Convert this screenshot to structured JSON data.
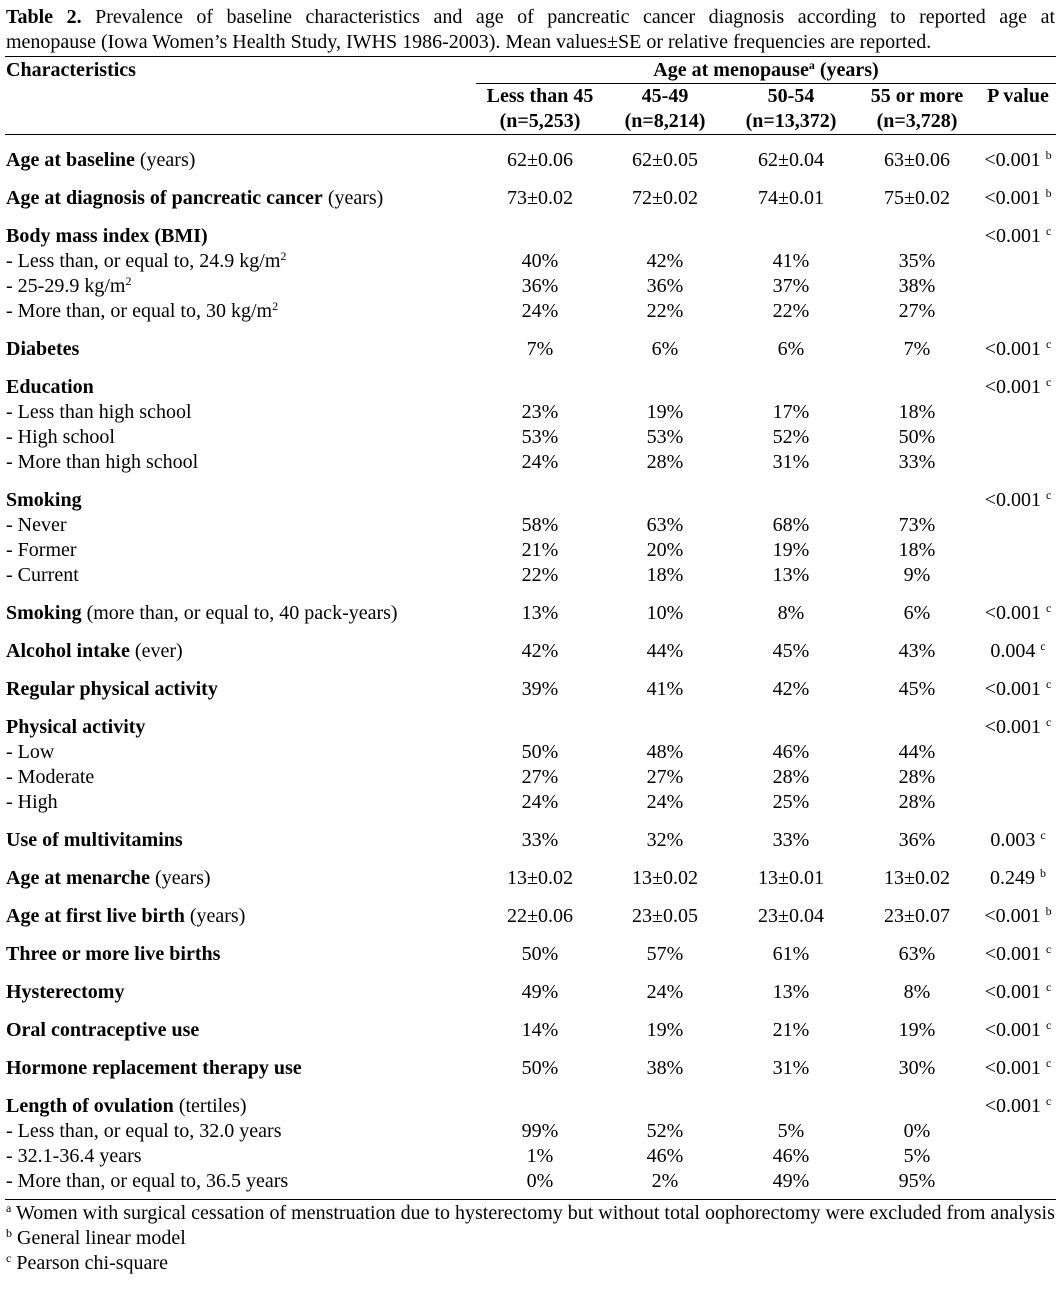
{
  "caption": {
    "label": "Table 2.",
    "text_line1": "Prevalence of baseline characteristics and age of pancreatic cancer diagnosis according to reported age at",
    "text_line2": "menopause (Iowa Women’s Health Study, IWHS 1986-2003). Mean values±SE or relative frequencies are reported."
  },
  "header": {
    "characteristics": "Characteristics",
    "group": "Age at menopause",
    "group_sup": "a",
    "group_unit": " (years)",
    "columns": [
      {
        "label": "Less than 45",
        "n": "(n=5,253)"
      },
      {
        "label": "45-49",
        "n": "(n=8,214)"
      },
      {
        "label": "50-54",
        "n": "(n=13,372)"
      },
      {
        "label": "55 or more",
        "n": "(n=3,728)"
      }
    ],
    "p_value": "P value"
  },
  "rows": [
    {
      "type": "main",
      "bold": "Age at baseline",
      "rest": " (years)",
      "values": [
        "62±0.06",
        "62±0.05",
        "62±0.04",
        "63±0.06"
      ],
      "p": "<0.001",
      "p_sup": "b"
    },
    {
      "type": "main",
      "bold": "Age at diagnosis of pancreatic cancer",
      "rest": " (years)",
      "values": [
        "73±0.02",
        "72±0.02",
        "74±0.01",
        "75±0.02"
      ],
      "p": "<0.001",
      "p_sup": "b"
    },
    {
      "type": "main",
      "bold": "Body mass index (BMI)",
      "rest": "",
      "values": [
        "",
        "",
        "",
        ""
      ],
      "p": "<0.001",
      "p_sup": "c"
    },
    {
      "type": "sub",
      "rest": "- Less than, or equal to, 24.9 kg/m",
      "sup": "2",
      "values": [
        "40%",
        "42%",
        "41%",
        "35%"
      ]
    },
    {
      "type": "sub",
      "rest": "- 25-29.9 kg/m",
      "sup": "2",
      "values": [
        "36%",
        "36%",
        "37%",
        "38%"
      ]
    },
    {
      "type": "sub",
      "rest": "- More than, or equal to, 30 kg/m",
      "sup": "2",
      "values": [
        "24%",
        "22%",
        "22%",
        "27%"
      ]
    },
    {
      "type": "main",
      "bold": "Diabetes",
      "rest": "",
      "values": [
        "7%",
        "6%",
        "6%",
        "7%"
      ],
      "p": "<0.001",
      "p_sup": "c"
    },
    {
      "type": "main",
      "bold": "Education",
      "rest": "",
      "values": [
        "",
        "",
        "",
        ""
      ],
      "p": "<0.001",
      "p_sup": "c"
    },
    {
      "type": "sub",
      "rest": "- Less than high school",
      "values": [
        "23%",
        "19%",
        "17%",
        "18%"
      ]
    },
    {
      "type": "sub",
      "rest": "- High school",
      "values": [
        "53%",
        "53%",
        "52%",
        "50%"
      ]
    },
    {
      "type": "sub",
      "rest": "- More than high school",
      "values": [
        "24%",
        "28%",
        "31%",
        "33%"
      ]
    },
    {
      "type": "main",
      "bold": "Smoking",
      "rest": "",
      "values": [
        "",
        "",
        "",
        ""
      ],
      "p": "<0.001",
      "p_sup": "c"
    },
    {
      "type": "sub",
      "rest": "- Never",
      "values": [
        "58%",
        "63%",
        "68%",
        "73%"
      ]
    },
    {
      "type": "sub",
      "rest": "- Former",
      "values": [
        "21%",
        "20%",
        "19%",
        "18%"
      ]
    },
    {
      "type": "sub",
      "rest": "- Current",
      "values": [
        "22%",
        "18%",
        "13%",
        "9%"
      ]
    },
    {
      "type": "main",
      "bold": "Smoking",
      "rest": " (more than, or equal to, 40 pack-years)",
      "values": [
        "13%",
        "10%",
        "8%",
        "6%"
      ],
      "p": "<0.001",
      "p_sup": "c"
    },
    {
      "type": "main",
      "bold": "Alcohol intake",
      "rest": " (ever)",
      "values": [
        "42%",
        "44%",
        "45%",
        "43%"
      ],
      "p": "0.004",
      "p_sup": "c"
    },
    {
      "type": "main",
      "bold": "Regular physical activity",
      "rest": "",
      "values": [
        "39%",
        "41%",
        "42%",
        "45%"
      ],
      "p": "<0.001",
      "p_sup": "c"
    },
    {
      "type": "main",
      "bold": "Physical activity",
      "rest": "",
      "values": [
        "",
        "",
        "",
        ""
      ],
      "p": "<0.001",
      "p_sup": "c"
    },
    {
      "type": "sub",
      "rest": "- Low",
      "values": [
        "50%",
        "48%",
        "46%",
        "44%"
      ]
    },
    {
      "type": "sub",
      "rest": "- Moderate",
      "values": [
        "27%",
        "27%",
        "28%",
        "28%"
      ]
    },
    {
      "type": "sub",
      "rest": "- High",
      "values": [
        "24%",
        "24%",
        "25%",
        "28%"
      ]
    },
    {
      "type": "main",
      "bold": "Use of multivitamins",
      "rest": "",
      "values": [
        "33%",
        "32%",
        "33%",
        "36%"
      ],
      "p": "0.003",
      "p_sup": "c"
    },
    {
      "type": "main",
      "bold": "Age at menarche",
      "rest": " (years)",
      "values": [
        "13±0.02",
        "13±0.02",
        "13±0.01",
        "13±0.02"
      ],
      "p": "0.249",
      "p_sup": "b"
    },
    {
      "type": "main",
      "bold": "Age at first live birth",
      "rest": " (years)",
      "values": [
        "22±0.06",
        "23±0.05",
        "23±0.04",
        "23±0.07"
      ],
      "p": "<0.001",
      "p_sup": "b"
    },
    {
      "type": "main",
      "bold": "Three or more live births",
      "rest": "",
      "values": [
        "50%",
        "57%",
        "61%",
        "63%"
      ],
      "p": "<0.001",
      "p_sup": "c"
    },
    {
      "type": "main",
      "bold": "Hysterectomy",
      "rest": "",
      "values": [
        "49%",
        "24%",
        "13%",
        "8%"
      ],
      "p": "<0.001",
      "p_sup": "c"
    },
    {
      "type": "main",
      "bold": "Oral contraceptive use",
      "rest": "",
      "values": [
        "14%",
        "19%",
        "21%",
        "19%"
      ],
      "p": "<0.001",
      "p_sup": "c"
    },
    {
      "type": "main",
      "bold": "Hormone replacement therapy use",
      "rest": "",
      "values": [
        "50%",
        "38%",
        "31%",
        "30%"
      ],
      "p": "<0.001",
      "p_sup": "c"
    },
    {
      "type": "main",
      "bold": "Length of ovulation",
      "rest": " (tertiles)",
      "values": [
        "",
        "",
        "",
        ""
      ],
      "p": "<0.001",
      "p_sup": "c"
    },
    {
      "type": "sub",
      "rest": "- Less than, or equal to, 32.0 years",
      "values": [
        "99%",
        "52%",
        "5%",
        "0%"
      ]
    },
    {
      "type": "sub",
      "rest": "- 32.1-36.4 years",
      "values": [
        "1%",
        "46%",
        "46%",
        "5%"
      ]
    },
    {
      "type": "sub",
      "rest": "- More than, or equal to, 36.5 years",
      "values": [
        "0%",
        "2%",
        "49%",
        "95%"
      ]
    }
  ],
  "footnotes": [
    {
      "sup": "a",
      "text": " Women with surgical cessation of menstruation due to hysterectomy but without total oophorectomy were excluded from analysis"
    },
    {
      "sup": "b",
      "text": " General linear model"
    },
    {
      "sup": "c",
      "text": " Pearson chi-square"
    }
  ]
}
